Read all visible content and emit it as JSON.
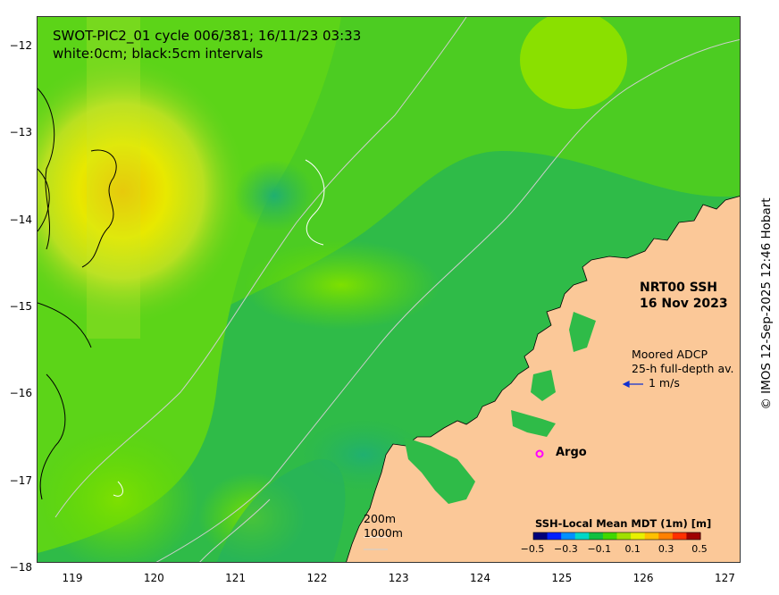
{
  "title": {
    "line1": "SWOT-PIC2_01 cycle 006/381; 16/11/23 03:33",
    "line2": "white:0cm; black:5cm intervals"
  },
  "product": {
    "line1": "NRT00 SSH",
    "line2": "16 Nov 2023"
  },
  "adcp_legend": {
    "line1": "Moored ADCP",
    "line2": "25-h full-depth av.",
    "scale_label": "1 m/s",
    "arrow_color": "#1030d0"
  },
  "argo_legend": {
    "marker": "o",
    "label": "Argo",
    "marker_color": "#ff00ff"
  },
  "bathymetry_legend": {
    "line1": "200m",
    "line2": "1000m"
  },
  "colorbar": {
    "title": "SSH-Local Mean MDT (1m) [m]",
    "ticks": [
      "−0.5",
      "−0.3",
      "−0.1",
      "0.1",
      "0.3",
      "0.5"
    ],
    "colors": [
      "#00007a",
      "#0020ff",
      "#0090ff",
      "#00d8c8",
      "#10c040",
      "#40d800",
      "#a0e000",
      "#e8f000",
      "#ffc000",
      "#ff8000",
      "#ff3000",
      "#a00000"
    ]
  },
  "axes": {
    "x_ticks": [
      "119",
      "120",
      "121",
      "122",
      "123",
      "124",
      "125",
      "126",
      "127"
    ],
    "y_ticks": [
      "−12",
      "−13",
      "−14",
      "−15",
      "−16",
      "−17",
      "−18"
    ]
  },
  "colors": {
    "land": "#fbc898",
    "ocean_base": "#2bb84a",
    "bathy_line": "#c8c8c8",
    "contour_0": "#ffffff",
    "contour_5": "#000000"
  },
  "credit": "© IMOS 12-Sep-2025 12:46 Hobart"
}
